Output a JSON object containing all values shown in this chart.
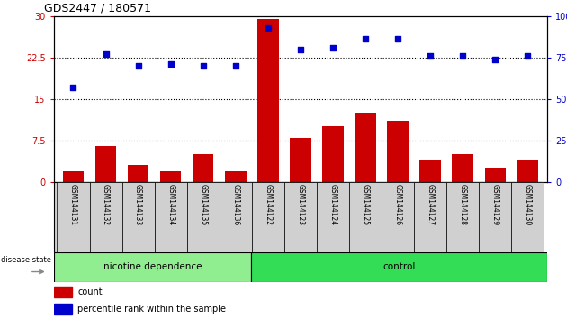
{
  "title": "GDS2447 / 180571",
  "samples": [
    "GSM144131",
    "GSM144132",
    "GSM144133",
    "GSM144134",
    "GSM144135",
    "GSM144136",
    "GSM144122",
    "GSM144123",
    "GSM144124",
    "GSM144125",
    "GSM144126",
    "GSM144127",
    "GSM144128",
    "GSM144129",
    "GSM144130"
  ],
  "counts": [
    2.0,
    6.5,
    3.0,
    2.0,
    5.0,
    2.0,
    29.5,
    8.0,
    10.0,
    12.5,
    11.0,
    4.0,
    5.0,
    2.5,
    4.0
  ],
  "percentiles": [
    57,
    77,
    70,
    71,
    70,
    70,
    93,
    80,
    81,
    86,
    86,
    76,
    76,
    74,
    76
  ],
  "groups": [
    "nicotine dependence",
    "nicotine dependence",
    "nicotine dependence",
    "nicotine dependence",
    "nicotine dependence",
    "nicotine dependence",
    "control",
    "control",
    "control",
    "control",
    "control",
    "control",
    "control",
    "control",
    "control"
  ],
  "left_ylim": [
    0,
    30
  ],
  "right_ylim": [
    0,
    100
  ],
  "left_yticks": [
    0,
    7.5,
    15,
    22.5,
    30
  ],
  "left_yticklabels": [
    "0",
    "7.5",
    "15",
    "22.5",
    "30"
  ],
  "right_yticks": [
    0,
    25,
    50,
    75,
    100
  ],
  "right_yticklabels": [
    "0",
    "25",
    "50",
    "75",
    "100%"
  ],
  "bar_color": "#cc0000",
  "dot_color": "#0000cc",
  "nicotine_color": "#90ee90",
  "control_color": "#33dd55",
  "nicotine_label": "nicotine dependence",
  "control_label": "control",
  "disease_state_label": "disease state",
  "legend_count": "count",
  "legend_percentile": "percentile rank within the sample",
  "tick_label_color_left": "#cc0000",
  "tick_label_color_right": "#0000cc",
  "background_color": "#ffffff",
  "sample_box_color": "#d0d0d0",
  "nicotine_count": 6,
  "control_count": 9
}
